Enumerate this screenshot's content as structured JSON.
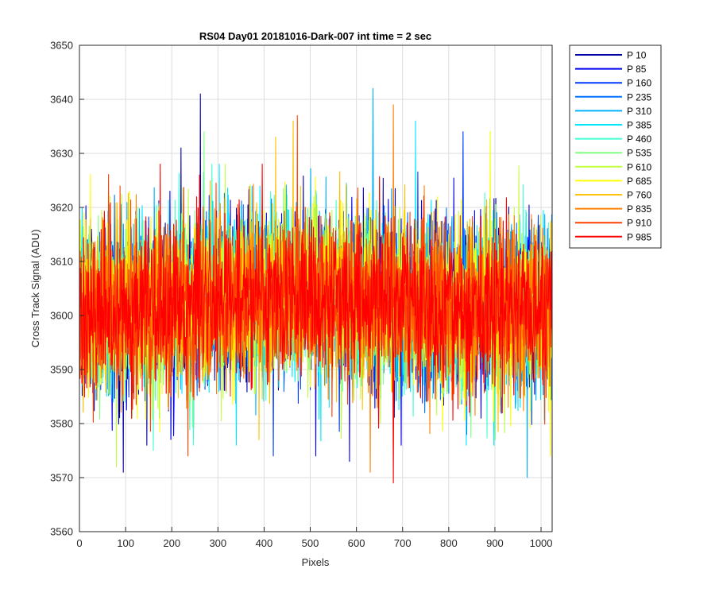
{
  "chart_data": {
    "type": "line",
    "title": "RS04 Day01 20181016-Dark-007 int time = 2 sec",
    "xlabel": "Pixels",
    "ylabel": "Cross Track Signal (ADU)",
    "xlim": [
      0,
      1024
    ],
    "ylim": [
      3560,
      3650
    ],
    "xticks": [
      0,
      100,
      200,
      300,
      400,
      500,
      600,
      700,
      800,
      900,
      1000
    ],
    "yticks": [
      3560,
      3570,
      3580,
      3590,
      3600,
      3610,
      3620,
      3630,
      3640,
      3650
    ],
    "grid": true,
    "legend_position": "outside-top-right",
    "n_points_per_series": 1024,
    "series": [
      {
        "name": "P 10",
        "color": "#0000a8",
        "mean": 3601,
        "spread": 7.5,
        "spikes": [
          [
            262,
            3641
          ],
          [
            95,
            3571
          ],
          [
            220,
            3631
          ]
        ]
      },
      {
        "name": "P 85",
        "color": "#0000f0",
        "mean": 3601,
        "spread": 7.5,
        "spikes": [
          [
            512,
            3574
          ],
          [
            585,
            3573
          ],
          [
            697,
            3576
          ],
          [
            870,
            3581
          ]
        ]
      },
      {
        "name": "P 160",
        "color": "#0038ff",
        "mean": 3601,
        "spread": 7.5,
        "spikes": [
          [
            831,
            3634
          ],
          [
            420,
            3574
          ]
        ]
      },
      {
        "name": "P 235",
        "color": "#0070ff",
        "mean": 3601,
        "spread": 7.5,
        "spikes": [
          [
            748,
            3582
          ]
        ]
      },
      {
        "name": "P 310",
        "color": "#00b0ff",
        "mean": 3601,
        "spread": 7.5,
        "spikes": [
          [
            636,
            3642
          ],
          [
            970,
            3570
          ]
        ]
      },
      {
        "name": "P 385",
        "color": "#00e8ff",
        "mean": 3601,
        "spread": 7.5,
        "spikes": [
          [
            728,
            3636
          ],
          [
            340,
            3576
          ]
        ]
      },
      {
        "name": "P 460",
        "color": "#40ffd0",
        "mean": 3601,
        "spread": 7.5,
        "spikes": [
          [
            160,
            3575
          ]
        ]
      },
      {
        "name": "P 535",
        "color": "#80ff80",
        "mean": 3601,
        "spread": 7.5,
        "spikes": [
          [
            270,
            3634
          ]
        ]
      },
      {
        "name": "P 610",
        "color": "#c0ff40",
        "mean": 3601,
        "spread": 7.5,
        "spikes": [
          [
            80,
            3572
          ]
        ]
      },
      {
        "name": "P 685",
        "color": "#ffff00",
        "mean": 3601,
        "spread": 7.5,
        "spikes": [
          [
            890,
            3634
          ],
          [
            1020,
            3574
          ]
        ]
      },
      {
        "name": "P 760",
        "color": "#ffc000",
        "mean": 3601,
        "spread": 7.5,
        "spikes": [
          [
            463,
            3636
          ],
          [
            425,
            3633
          ]
        ]
      },
      {
        "name": "P 835",
        "color": "#ff8000",
        "mean": 3601,
        "spread": 7.5,
        "spikes": [
          [
            680,
            3639
          ],
          [
            630,
            3571
          ]
        ]
      },
      {
        "name": "P 910",
        "color": "#ff4000",
        "mean": 3601,
        "spread": 7.5,
        "spikes": [
          [
            472,
            3637
          ],
          [
            235,
            3574
          ]
        ]
      },
      {
        "name": "P 985",
        "color": "#ff0000",
        "mean": 3601,
        "spread": 7.5,
        "spikes": [
          [
            680,
            3569
          ],
          [
            175,
            3628
          ]
        ]
      }
    ]
  }
}
